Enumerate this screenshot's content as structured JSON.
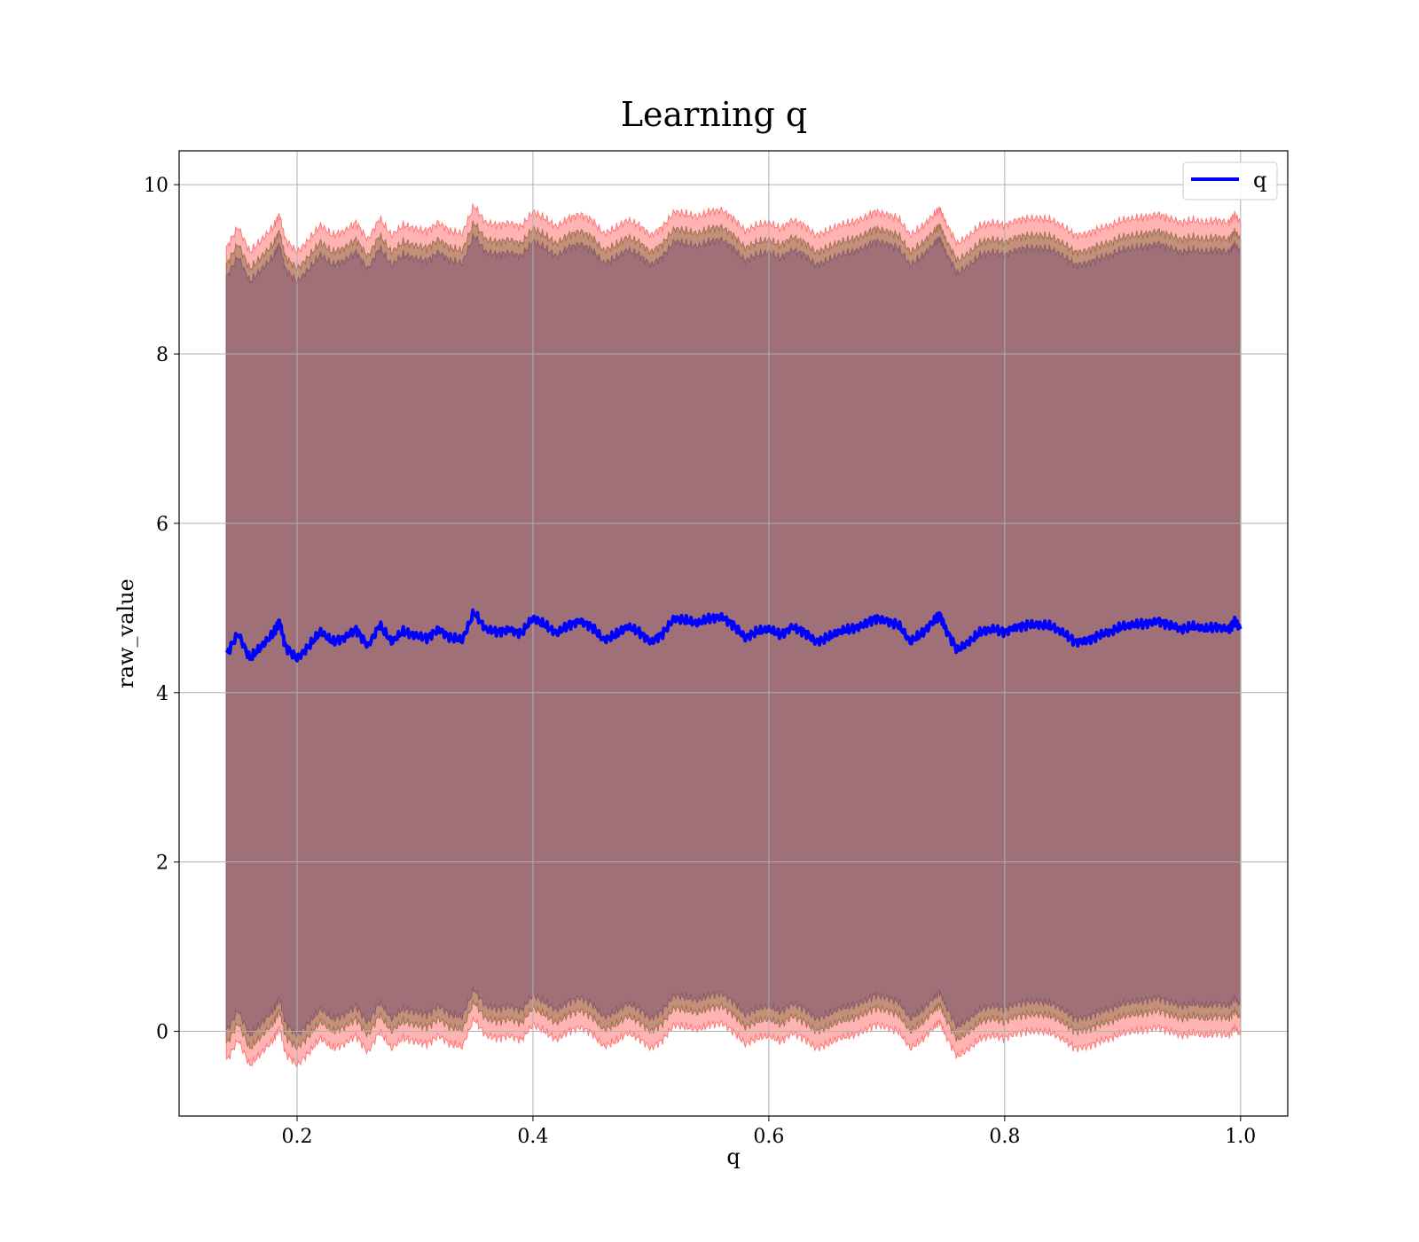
{
  "chart_data": {
    "type": "line",
    "title": "Learning q",
    "xlabel": "q",
    "ylabel": "raw_value",
    "xlim": [
      0.1,
      1.04
    ],
    "ylim": [
      -1,
      10.4
    ],
    "xticks": [
      0.2,
      0.4,
      0.6,
      0.8,
      1.0
    ],
    "xtick_labels": [
      "0.2",
      "0.4",
      "0.6",
      "0.8",
      "1.0"
    ],
    "yticks": [
      0,
      2,
      4,
      6,
      8,
      10
    ],
    "ytick_labels": [
      "0",
      "2",
      "4",
      "6",
      "8",
      "10"
    ],
    "grid": true,
    "legend": {
      "placement": "top-right",
      "entries": [
        "q"
      ]
    },
    "colors": {
      "line": "#0000ff",
      "outer_band": "#ff9999",
      "middle_band": "#b88a6e",
      "inner_band": "#a07078",
      "grid": "#b0b0b0"
    },
    "series": [
      {
        "name": "q",
        "x": [
          0.14,
          0.15,
          0.16,
          0.17,
          0.18,
          0.185,
          0.19,
          0.2,
          0.21,
          0.22,
          0.23,
          0.24,
          0.25,
          0.26,
          0.27,
          0.28,
          0.29,
          0.3,
          0.31,
          0.32,
          0.33,
          0.34,
          0.35,
          0.36,
          0.37,
          0.38,
          0.39,
          0.4,
          0.41,
          0.42,
          0.43,
          0.44,
          0.45,
          0.46,
          0.47,
          0.48,
          0.49,
          0.5,
          0.51,
          0.52,
          0.53,
          0.54,
          0.55,
          0.56,
          0.57,
          0.58,
          0.59,
          0.6,
          0.61,
          0.62,
          0.63,
          0.64,
          0.65,
          0.66,
          0.67,
          0.68,
          0.69,
          0.7,
          0.71,
          0.72,
          0.73,
          0.74,
          0.745,
          0.75,
          0.76,
          0.77,
          0.78,
          0.79,
          0.8,
          0.81,
          0.82,
          0.83,
          0.84,
          0.85,
          0.86,
          0.87,
          0.88,
          0.89,
          0.9,
          0.91,
          0.92,
          0.93,
          0.94,
          0.95,
          0.96,
          0.97,
          0.98,
          0.99,
          0.995,
          1.0
        ],
        "values": [
          4.45,
          4.7,
          4.4,
          4.55,
          4.7,
          4.85,
          4.55,
          4.4,
          4.55,
          4.72,
          4.6,
          4.65,
          4.75,
          4.55,
          4.8,
          4.6,
          4.72,
          4.68,
          4.65,
          4.75,
          4.65,
          4.62,
          4.95,
          4.75,
          4.72,
          4.75,
          4.7,
          4.88,
          4.8,
          4.7,
          4.8,
          4.85,
          4.78,
          4.62,
          4.68,
          4.78,
          4.72,
          4.6,
          4.7,
          4.88,
          4.85,
          4.82,
          4.88,
          4.9,
          4.8,
          4.65,
          4.72,
          4.75,
          4.68,
          4.78,
          4.72,
          4.6,
          4.65,
          4.72,
          4.75,
          4.8,
          4.88,
          4.85,
          4.8,
          4.6,
          4.7,
          4.85,
          4.92,
          4.75,
          4.5,
          4.6,
          4.72,
          4.75,
          4.72,
          4.78,
          4.8,
          4.8,
          4.78,
          4.7,
          4.6,
          4.62,
          4.68,
          4.72,
          4.78,
          4.8,
          4.82,
          4.85,
          4.8,
          4.75,
          4.78,
          4.75,
          4.78,
          4.75,
          4.85,
          4.75
        ]
      }
    ]
  }
}
